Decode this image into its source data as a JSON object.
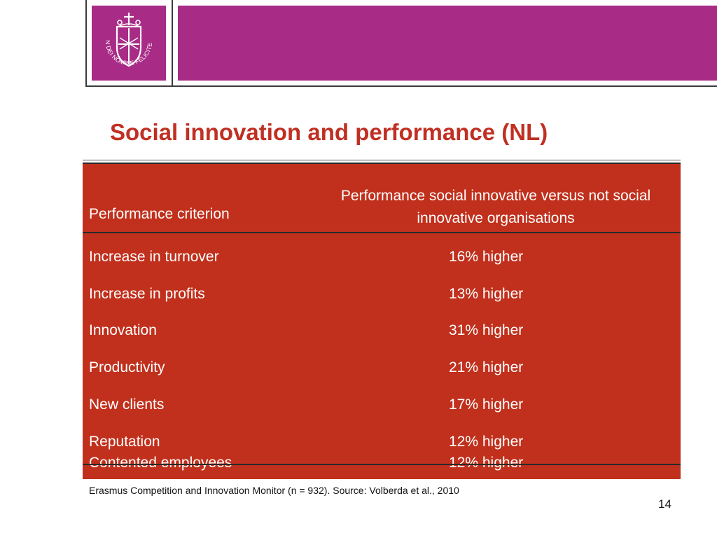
{
  "colors": {
    "header_band": "#a82b86",
    "title": "#c03023",
    "table_background": "#c1301c",
    "table_text": "#ffffff"
  },
  "logo": {
    "icon": "university-seal-icon",
    "motto": "IN DEI NOMINE FELICITER"
  },
  "title": "Social innovation and performance (NL)",
  "table": {
    "headers": [
      "Performance criterion",
      "Performance social innovative versus not social innovative organisations"
    ],
    "rows": [
      {
        "criterion": "Increase in turnover",
        "value": "16% higher"
      },
      {
        "criterion": "Increase in profits",
        "value": "13% higher"
      },
      {
        "criterion": "Innovation",
        "value": "31% higher"
      },
      {
        "criterion": "Productivity",
        "value": "21% higher"
      },
      {
        "criterion": "New clients",
        "value": "17% higher"
      },
      {
        "criterion": "Reputation",
        "value": "12% higher"
      },
      {
        "criterion": "Contented employees",
        "value": "12% higher"
      }
    ]
  },
  "footnote": "Erasmus Competition and Innovation Monitor (n = 932). Source: Volberda et al., 2010",
  "page_number": "14"
}
